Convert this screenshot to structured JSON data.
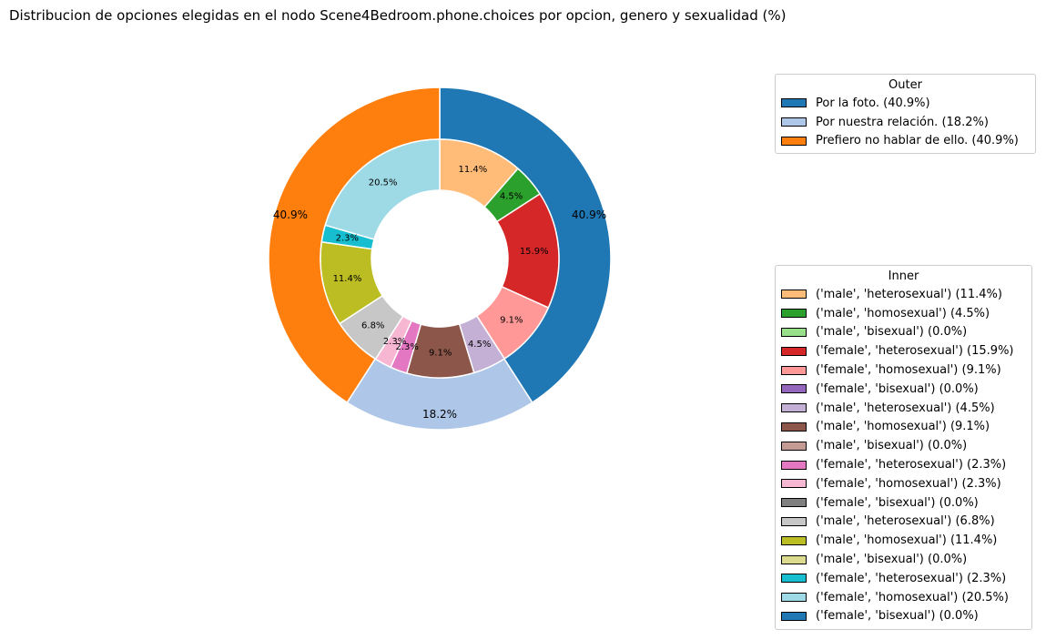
{
  "title": "Distribucion de opciones elegidas en el nodo Scene4Bedroom.phone.choices por opcion, genero y sexualidad (%)",
  "chart_data": {
    "type": "pie",
    "variant": "nested-donut",
    "start_angle_deg": 90,
    "direction": "clockwise",
    "outer": {
      "legend_title": "Outer",
      "legend_placement": "right-top",
      "slices": [
        {
          "label": "Por la foto. (40.9%)",
          "value": 40.9,
          "pct_label": "40.9%",
          "color": "#1f77b4"
        },
        {
          "label": "Por nuestra relación. (18.2%)",
          "value": 18.2,
          "pct_label": "18.2%",
          "color": "#aec7e8"
        },
        {
          "label": "Prefiero no hablar de ello. (40.9%)",
          "value": 40.9,
          "pct_label": "40.9%",
          "color": "#ff7f0e"
        }
      ]
    },
    "inner": {
      "legend_title": "Inner",
      "legend_placement": "right-bottom",
      "slices": [
        {
          "label": "('male', 'heterosexual') (11.4%)",
          "value": 11.4,
          "pct_label": "11.4%",
          "color": "#ffbb78"
        },
        {
          "label": "('male', 'homosexual') (4.5%)",
          "value": 4.5,
          "pct_label": "4.5%",
          "color": "#2ca02c"
        },
        {
          "label": "('male', 'bisexual') (0.0%)",
          "value": 0.0,
          "pct_label": "",
          "color": "#98df8a"
        },
        {
          "label": "('female', 'heterosexual') (15.9%)",
          "value": 15.9,
          "pct_label": "15.9%",
          "color": "#d62728"
        },
        {
          "label": "('female', 'homosexual') (9.1%)",
          "value": 9.1,
          "pct_label": "9.1%",
          "color": "#ff9896"
        },
        {
          "label": "('female', 'bisexual') (0.0%)",
          "value": 0.0,
          "pct_label": "",
          "color": "#9467bd"
        },
        {
          "label": "('male', 'heterosexual') (4.5%)",
          "value": 4.5,
          "pct_label": "4.5%",
          "color": "#c5b0d5"
        },
        {
          "label": "('male', 'homosexual') (9.1%)",
          "value": 9.1,
          "pct_label": "9.1%",
          "color": "#8c564b"
        },
        {
          "label": "('male', 'bisexual') (0.0%)",
          "value": 0.0,
          "pct_label": "",
          "color": "#c49c94"
        },
        {
          "label": "('female', 'heterosexual') (2.3%)",
          "value": 2.3,
          "pct_label": "2.3%",
          "color": "#e377c2"
        },
        {
          "label": "('female', 'homosexual') (2.3%)",
          "value": 2.3,
          "pct_label": "2.3%",
          "color": "#f7b6d2"
        },
        {
          "label": "('female', 'bisexual') (0.0%)",
          "value": 0.0,
          "pct_label": "",
          "color": "#7f7f7f"
        },
        {
          "label": "('male', 'heterosexual') (6.8%)",
          "value": 6.8,
          "pct_label": "6.8%",
          "color": "#c7c7c7"
        },
        {
          "label": "('male', 'homosexual') (11.4%)",
          "value": 11.4,
          "pct_label": "11.4%",
          "color": "#bcbd22"
        },
        {
          "label": "('male', 'bisexual') (0.0%)",
          "value": 0.0,
          "pct_label": "",
          "color": "#dbdb8d"
        },
        {
          "label": "('female', 'heterosexual') (2.3%)",
          "value": 2.3,
          "pct_label": "2.3%",
          "color": "#17becf"
        },
        {
          "label": "('female', 'homosexual') (20.5%)",
          "value": 20.5,
          "pct_label": "20.5%",
          "color": "#9edae5"
        },
        {
          "label": "('female', 'bisexual') (0.0%)",
          "value": 0.0,
          "pct_label": "",
          "color": "#1f77b4"
        }
      ]
    }
  }
}
